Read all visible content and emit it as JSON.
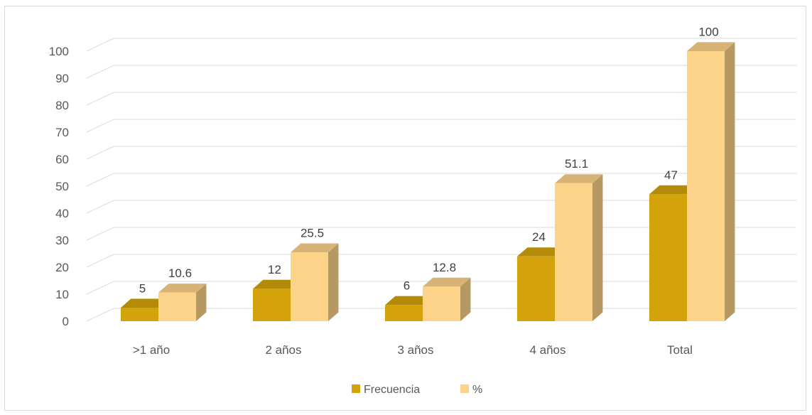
{
  "chart_data": {
    "type": "bar",
    "title": "",
    "xlabel": "",
    "ylabel": "",
    "categories": [
      ">1 año",
      "2 años",
      "3 años",
      "4 años",
      "Total"
    ],
    "series": [
      {
        "name": "Frecuencia",
        "values": [
          5,
          12,
          6,
          24,
          47
        ],
        "color": "#d4a20a"
      },
      {
        "name": "%",
        "values": [
          10.6,
          25.5,
          12.8,
          51.1,
          100
        ],
        "color": "#fdd38a"
      }
    ],
    "data_labels": {
      "Frecuencia": [
        "5",
        "12",
        "6",
        "24",
        "47"
      ],
      "%": [
        "10.6",
        "25.5",
        "12.8",
        "51.1",
        "100"
      ]
    },
    "ylim": [
      0,
      100
    ],
    "yticks": [
      0,
      10,
      20,
      30,
      40,
      50,
      60,
      70,
      80,
      90,
      100
    ],
    "grid": true,
    "three_d": true,
    "legend_position": "bottom"
  }
}
